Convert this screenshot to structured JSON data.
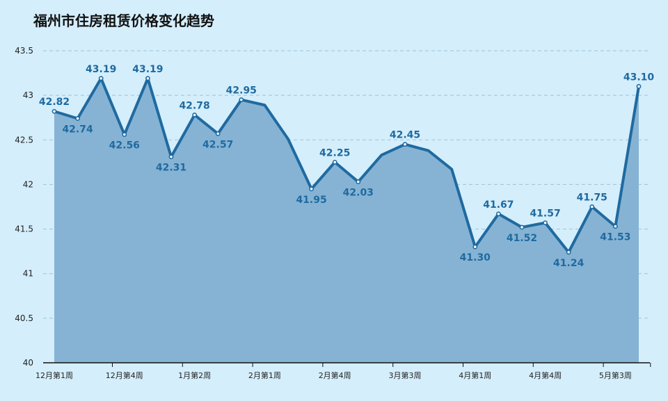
{
  "chart_data": {
    "type": "area",
    "title": "福州市住房租赁价格变化趋势",
    "xlabel": "",
    "ylabel": "",
    "ylim": [
      40,
      43.5
    ],
    "yticks": [
      40,
      40.5,
      41,
      41.5,
      42,
      42.5,
      43,
      43.5
    ],
    "ytick_labels": [
      "40",
      "40.5",
      "41",
      "41.5",
      "42",
      "42.5",
      "43",
      "43.5"
    ],
    "x_tick_labels": [
      "12月第1周",
      "12月第4周",
      "1月第2周",
      "2月第1周",
      "2月第4周",
      "3月第3周",
      "4月第1周",
      "4月第4周",
      "5月第3周"
    ],
    "x_tick_indices": [
      0,
      3,
      6,
      9,
      12,
      15,
      18,
      21,
      24
    ],
    "grid": true,
    "values": [
      42.82,
      42.74,
      43.19,
      42.56,
      43.19,
      42.31,
      42.78,
      42.57,
      42.95,
      42.89,
      42.51,
      41.95,
      42.25,
      42.03,
      42.33,
      42.45,
      42.38,
      42.17,
      41.3,
      41.67,
      41.52,
      41.57,
      41.24,
      41.75,
      41.53,
      43.1
    ],
    "labels": [
      "42.82",
      "42.74",
      "43.19",
      "42.56",
      "43.19",
      "42.31",
      "42.78",
      "42.57",
      "42.95",
      "",
      "",
      "41.95",
      "42.25",
      "42.03",
      "",
      "42.45",
      "",
      "",
      "41.30",
      "41.67",
      "41.52",
      "41.57",
      "41.24",
      "41.75",
      "41.53",
      "43.10"
    ],
    "label_pos": [
      "above",
      "below",
      "above",
      "below",
      "above",
      "below",
      "above",
      "below",
      "above",
      "",
      "",
      "below",
      "above",
      "below",
      "",
      "above",
      "",
      "",
      "below",
      "above",
      "below",
      "above",
      "below",
      "above",
      "below",
      "above"
    ],
    "colors": {
      "line": "#1f6aa0",
      "area": "#86b3d4",
      "label": "#1f6aa0",
      "grid": "#9ec3d6",
      "background": "#d4eefc"
    }
  }
}
